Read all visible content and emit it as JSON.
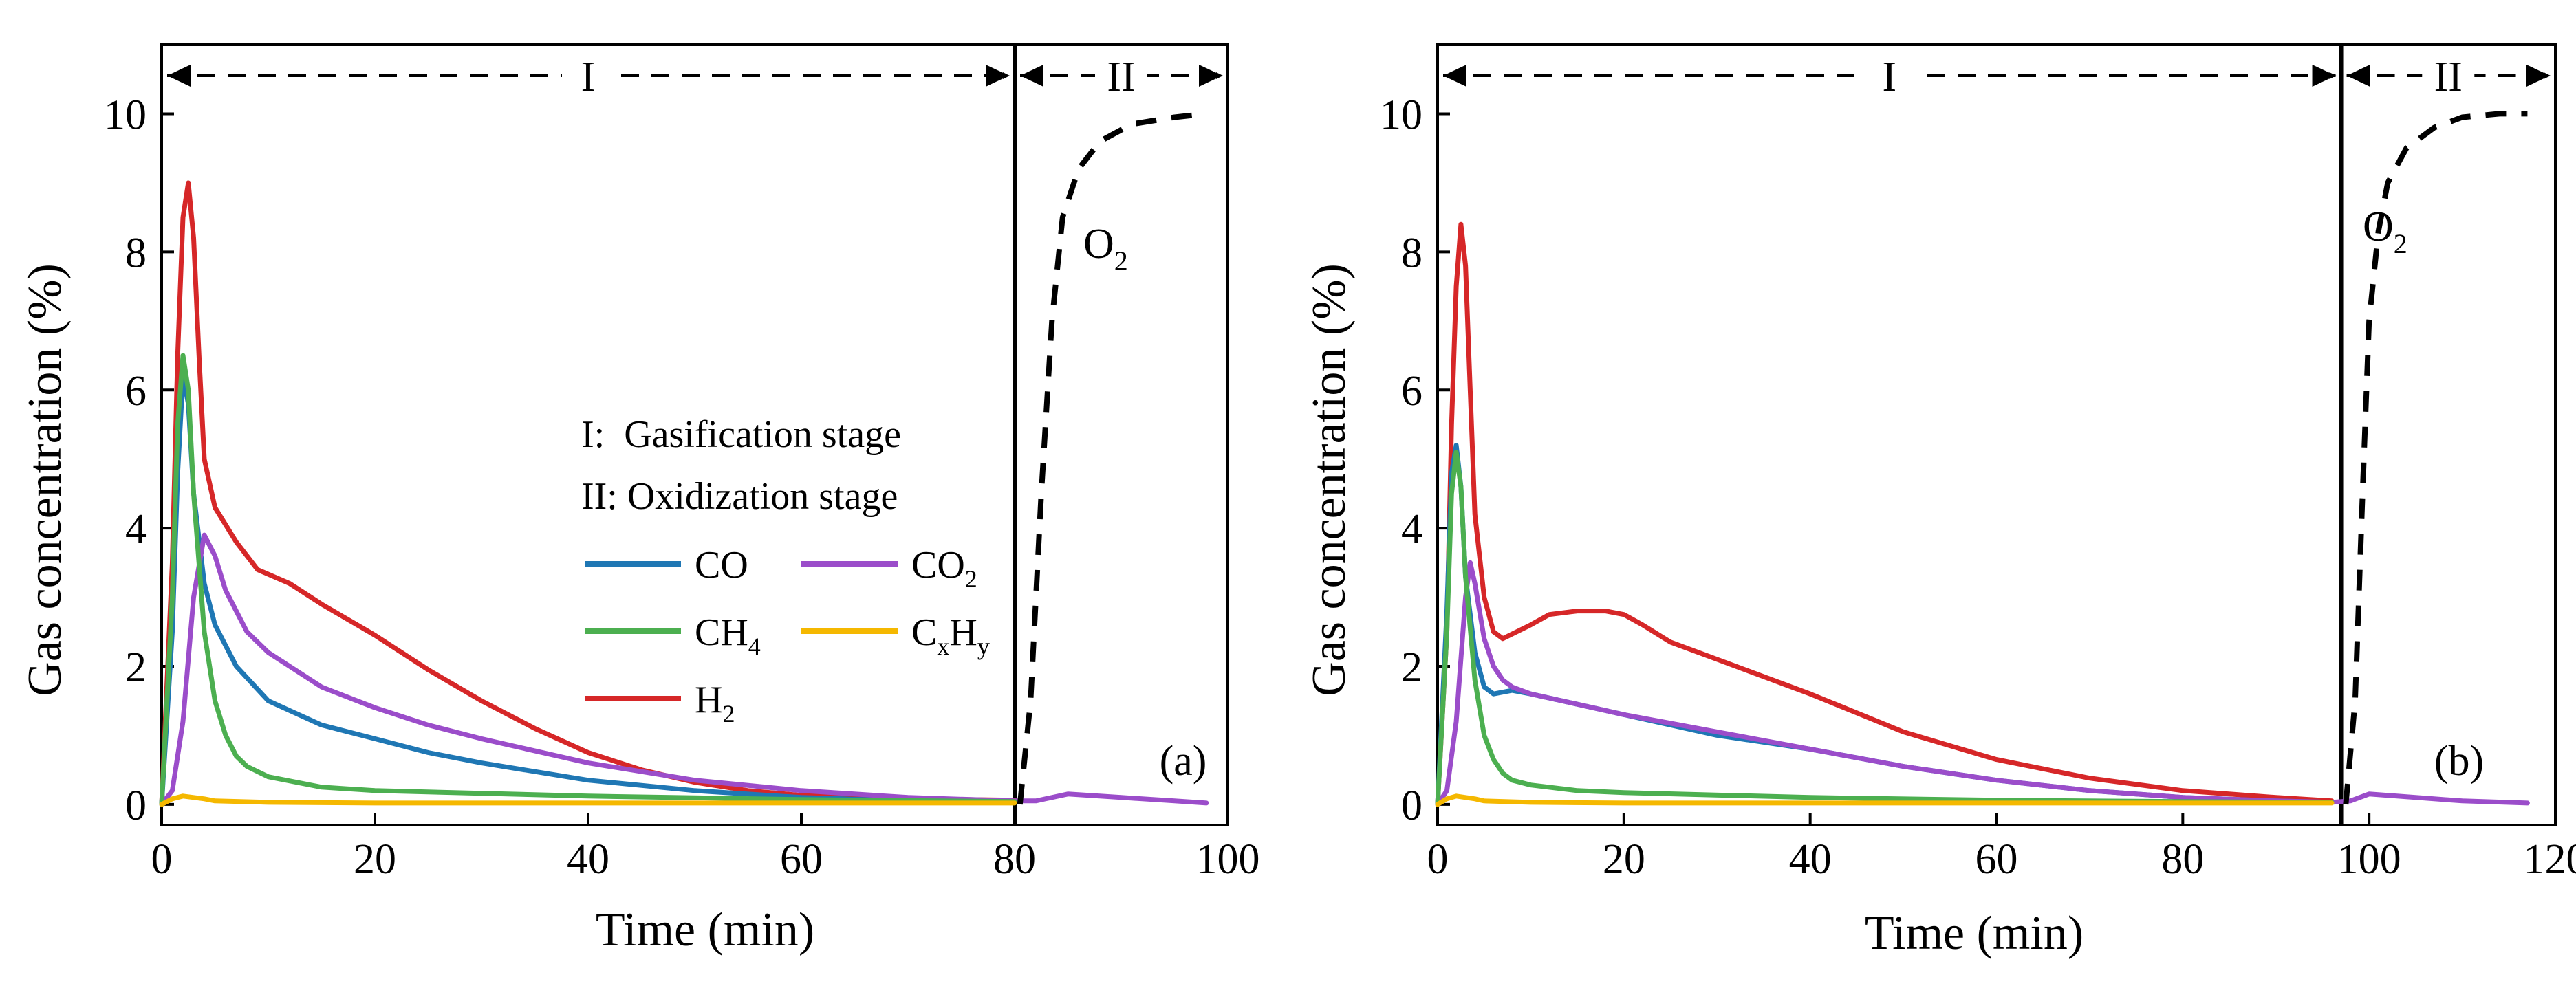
{
  "chart_data": [
    {
      "type": "line",
      "panel_label": "(a)",
      "xlabel": "Time (min)",
      "ylabel": "Gas concentration (%)",
      "xlim": [
        0,
        100
      ],
      "ylim": [
        -0.3,
        11
      ],
      "xticks": [
        "0",
        "20",
        "40",
        "60",
        "80",
        "100"
      ],
      "yticks": [
        "0",
        "2",
        "4",
        "6",
        "8",
        "10"
      ],
      "stage_boundary": 80,
      "stage_labels": [
        "I",
        "II"
      ],
      "o2_label": {
        "base": "O",
        "sub": "2"
      },
      "legend": {
        "stage_lines": [
          "I:  Gasification stage",
          "II: Oxidization stage"
        ],
        "items": [
          {
            "key": "CO",
            "base": "CO",
            "sub": "",
            "sup": ""
          },
          {
            "key": "CO2",
            "base": "CO",
            "sub": "2",
            "sup": ""
          },
          {
            "key": "CH4",
            "base": "CH",
            "sub": "4",
            "sup": ""
          },
          {
            "key": "CxHy",
            "base": "C",
            "sub": "x",
            "mid": "H",
            "sub2": "y"
          },
          {
            "key": "H2",
            "base": "H",
            "sub": "2",
            "sup": ""
          }
        ]
      },
      "series": [
        {
          "name": "H2",
          "color": "#d62728",
          "x": [
            0,
            1,
            1.5,
            2,
            2.5,
            3,
            3.5,
            4,
            5,
            7,
            9,
            12,
            15,
            20,
            25,
            30,
            35,
            40,
            45,
            50,
            55,
            60,
            65,
            70,
            75,
            80
          ],
          "y": [
            0,
            3.5,
            6.5,
            8.5,
            9.0,
            8.2,
            6.5,
            5.0,
            4.3,
            3.8,
            3.4,
            3.2,
            2.9,
            2.45,
            1.95,
            1.5,
            1.1,
            0.75,
            0.5,
            0.32,
            0.2,
            0.13,
            0.1,
            0.08,
            0.07,
            0.06
          ]
        },
        {
          "name": "CO",
          "color": "#1f77b4",
          "x": [
            0,
            1,
            1.5,
            2,
            2.5,
            3,
            4,
            5,
            7,
            10,
            15,
            20,
            25,
            30,
            40,
            50,
            60,
            70,
            80
          ],
          "y": [
            0,
            2.5,
            4.8,
            6.2,
            5.8,
            4.5,
            3.2,
            2.6,
            2.0,
            1.5,
            1.15,
            0.95,
            0.75,
            0.6,
            0.35,
            0.2,
            0.1,
            0.05,
            0.03
          ]
        },
        {
          "name": "CO2",
          "color": "#9b4dca",
          "x": [
            0,
            1,
            2,
            3,
            4,
            5,
            6,
            8,
            10,
            15,
            20,
            25,
            30,
            40,
            50,
            60,
            70,
            80,
            82,
            85,
            90,
            95,
            98
          ],
          "y": [
            0,
            0.2,
            1.2,
            3.0,
            3.9,
            3.6,
            3.1,
            2.5,
            2.2,
            1.7,
            1.4,
            1.15,
            0.95,
            0.6,
            0.35,
            0.2,
            0.1,
            0.05,
            0.05,
            0.15,
            0.1,
            0.05,
            0.02
          ]
        },
        {
          "name": "CH4",
          "color": "#4caf50",
          "x": [
            0,
            1,
            1.5,
            2,
            2.5,
            3,
            4,
            5,
            6,
            7,
            8,
            10,
            15,
            20,
            40,
            60,
            80
          ],
          "y": [
            0,
            3.0,
            5.5,
            6.5,
            6.0,
            4.5,
            2.5,
            1.5,
            1.0,
            0.7,
            0.55,
            0.4,
            0.25,
            0.2,
            0.12,
            0.07,
            0.04
          ]
        },
        {
          "name": "CxHy",
          "color": "#f5b800",
          "x": [
            0,
            1,
            2,
            3,
            4,
            5,
            10,
            20,
            40,
            60,
            80
          ],
          "y": [
            0,
            0.08,
            0.12,
            0.1,
            0.08,
            0.05,
            0.03,
            0.02,
            0.02,
            0.02,
            0.02
          ]
        },
        {
          "name": "O2",
          "color": "#000000",
          "dashed": true,
          "x": [
            80.5,
            81.5,
            82.5,
            83.5,
            84.5,
            86,
            88,
            91,
            95,
            98
          ],
          "y": [
            0,
            1.5,
            4.5,
            7.0,
            8.5,
            9.2,
            9.6,
            9.85,
            9.95,
            10.0
          ]
        }
      ]
    },
    {
      "type": "line",
      "panel_label": "(b)",
      "xlabel": "Time (min)",
      "ylabel": "Gas concentration (%)",
      "xlim": [
        0,
        120
      ],
      "ylim": [
        -0.3,
        11
      ],
      "xticks": [
        "0",
        "20",
        "40",
        "60",
        "80",
        "100",
        "120"
      ],
      "yticks": [
        "0",
        "2",
        "4",
        "6",
        "8",
        "10"
      ],
      "stage_boundary": 97,
      "stage_labels": [
        "I",
        "II"
      ],
      "o2_label": {
        "base": "O",
        "sub": "2"
      },
      "series": [
        {
          "name": "H2",
          "color": "#d62728",
          "x": [
            0,
            1,
            1.5,
            2,
            2.5,
            3,
            3.5,
            4,
            5,
            6,
            7,
            10,
            12,
            15,
            18,
            20,
            22,
            25,
            30,
            40,
            50,
            60,
            70,
            80,
            90,
            96
          ],
          "y": [
            0,
            2.5,
            5.5,
            7.5,
            8.4,
            7.8,
            6.0,
            4.2,
            3.0,
            2.5,
            2.4,
            2.6,
            2.75,
            2.8,
            2.8,
            2.75,
            2.6,
            2.35,
            2.1,
            1.6,
            1.05,
            0.65,
            0.38,
            0.2,
            0.1,
            0.05
          ]
        },
        {
          "name": "CO",
          "color": "#1f77b4",
          "x": [
            0,
            1,
            1.5,
            2,
            2.5,
            3,
            4,
            5,
            6,
            8,
            10,
            15,
            20,
            30,
            40,
            50,
            60,
            70,
            80,
            90,
            96
          ],
          "y": [
            0,
            2.8,
            4.8,
            5.2,
            4.6,
            3.3,
            2.2,
            1.7,
            1.6,
            1.65,
            1.6,
            1.45,
            1.3,
            1.0,
            0.8,
            0.55,
            0.35,
            0.2,
            0.1,
            0.05,
            0.03
          ]
        },
        {
          "name": "CO2",
          "color": "#9b4dca",
          "x": [
            0,
            1,
            2,
            3,
            3.5,
            4,
            5,
            6,
            7,
            8,
            10,
            15,
            20,
            30,
            40,
            50,
            60,
            70,
            80,
            90,
            96,
            98,
            100,
            105,
            110,
            117
          ],
          "y": [
            0,
            0.2,
            1.2,
            3.0,
            3.5,
            3.2,
            2.4,
            2.0,
            1.8,
            1.7,
            1.6,
            1.45,
            1.3,
            1.05,
            0.8,
            0.55,
            0.35,
            0.2,
            0.1,
            0.05,
            0.03,
            0.05,
            0.15,
            0.1,
            0.05,
            0.02
          ]
        },
        {
          "name": "CH4",
          "color": "#4caf50",
          "x": [
            0,
            1,
            1.5,
            2,
            2.5,
            3,
            4,
            5,
            6,
            7,
            8,
            10,
            15,
            20,
            40,
            60,
            80,
            96
          ],
          "y": [
            0,
            2.5,
            4.5,
            5.1,
            4.6,
            3.3,
            1.8,
            1.0,
            0.65,
            0.45,
            0.35,
            0.28,
            0.2,
            0.17,
            0.1,
            0.06,
            0.04,
            0.03
          ]
        },
        {
          "name": "CxHy",
          "color": "#f5b800",
          "x": [
            0,
            1,
            2,
            3,
            4,
            5,
            10,
            20,
            40,
            60,
            80,
            96
          ],
          "y": [
            0,
            0.08,
            0.12,
            0.1,
            0.08,
            0.05,
            0.03,
            0.02,
            0.02,
            0.02,
            0.02,
            0.02
          ]
        },
        {
          "name": "O2",
          "color": "#000000",
          "dashed": true,
          "x": [
            97.5,
            98.5,
            99.3,
            100,
            101,
            102,
            104,
            107,
            110,
            114,
            117
          ],
          "y": [
            0,
            1.5,
            4.5,
            7.0,
            8.3,
            9.0,
            9.5,
            9.8,
            9.95,
            10.0,
            10.0
          ]
        }
      ]
    }
  ]
}
